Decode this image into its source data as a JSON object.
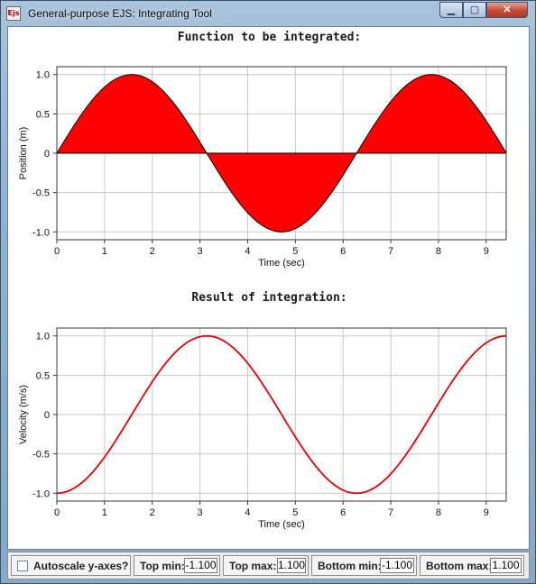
{
  "window": {
    "title": "General-purpose EJS: Integrating Tool",
    "icon_text": "Ejs",
    "buttons": {
      "minimize": "▁",
      "maximize": "▢",
      "close": "✕"
    }
  },
  "chart_data": [
    {
      "type": "area",
      "title": "Function to be integrated:",
      "xlabel": "Time (sec)",
      "ylabel": "Position (m)",
      "xlim": [
        0,
        9.42
      ],
      "ylim": [
        -1.1,
        1.1
      ],
      "xticks": [
        "0",
        "1",
        "2",
        "3",
        "4",
        "5",
        "6",
        "7",
        "8",
        "9"
      ],
      "yticks": [
        "1.0",
        "0.5",
        "0",
        "-0.5",
        "-1.0"
      ],
      "series": [
        {
          "function": "sin(t)",
          "fill": "#ff0000",
          "stroke": "#000000"
        }
      ],
      "grid": true
    },
    {
      "type": "line",
      "title": "Result of integration:",
      "xlabel": "Time (sec)",
      "ylabel": "Velocity (m/s)",
      "xlim": [
        0,
        9.42
      ],
      "ylim": [
        -1.1,
        1.1
      ],
      "xticks": [
        "0",
        "1",
        "2",
        "3",
        "4",
        "5",
        "6",
        "7",
        "8",
        "9"
      ],
      "yticks": [
        "1.0",
        "0.5",
        "0",
        "-0.5",
        "-1.0"
      ],
      "series": [
        {
          "function": "-cos(t)",
          "stroke": "#dd0000"
        }
      ],
      "grid": true
    }
  ],
  "controls": {
    "autoscale_label": "Autoscale y-axes?",
    "autoscale_checked": false,
    "top_min_label": "Top min:",
    "top_min_value": "-1.100",
    "top_max_label": "Top max:",
    "top_max_value": "1.100",
    "bottom_min_label": "Bottom min:",
    "bottom_min_value": "-1.100",
    "bottom_max_label": "Bottom max:",
    "bottom_max_value": "1.100"
  }
}
